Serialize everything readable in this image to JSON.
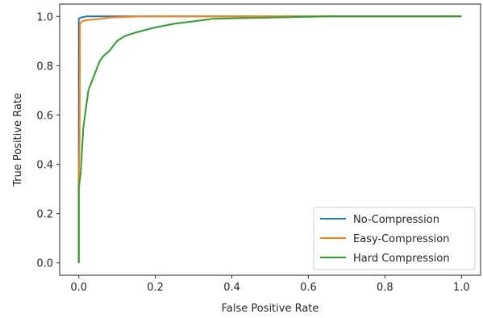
{
  "chart_data": {
    "type": "line",
    "title": "",
    "xlabel": "False Positive Rate",
    "ylabel": "True Positive Rate",
    "xlim": [
      -0.05,
      1.05
    ],
    "ylim": [
      -0.05,
      1.05
    ],
    "xticks": [
      0.0,
      0.2,
      0.4,
      0.6,
      0.8,
      1.0
    ],
    "yticks": [
      0.0,
      0.2,
      0.4,
      0.6,
      0.8,
      1.0
    ],
    "xtick_labels": [
      "0.0",
      "0.2",
      "0.4",
      "0.6",
      "0.8",
      "1.0"
    ],
    "ytick_labels": [
      "0.0",
      "0.2",
      "0.4",
      "0.6",
      "0.8",
      "1.0"
    ],
    "grid": false,
    "legend_position": "lower-right",
    "series": [
      {
        "name": "No-Compression",
        "color": "#1f77b4",
        "points": [
          [
            0,
            0
          ],
          [
            0,
            0.99
          ],
          [
            0.005,
            0.995
          ],
          [
            0.02,
            1.0
          ],
          [
            1.0,
            1.0
          ]
        ]
      },
      {
        "name": "Easy-Compression",
        "color": "#ff7f0e",
        "points": [
          [
            0,
            0
          ],
          [
            0,
            0.35
          ],
          [
            0.002,
            0.5
          ],
          [
            0.003,
            0.97
          ],
          [
            0.008,
            0.98
          ],
          [
            0.02,
            0.985
          ],
          [
            0.06,
            0.99
          ],
          [
            0.08,
            0.995
          ],
          [
            0.16,
            1.0
          ],
          [
            1.0,
            1.0
          ]
        ]
      },
      {
        "name": "Hard Compression",
        "color": "#2ca02c",
        "points": [
          [
            0,
            0
          ],
          [
            0,
            0.3
          ],
          [
            0.005,
            0.37
          ],
          [
            0.008,
            0.45
          ],
          [
            0.012,
            0.55
          ],
          [
            0.018,
            0.62
          ],
          [
            0.025,
            0.7
          ],
          [
            0.035,
            0.74
          ],
          [
            0.045,
            0.78
          ],
          [
            0.055,
            0.82
          ],
          [
            0.065,
            0.84
          ],
          [
            0.08,
            0.86
          ],
          [
            0.09,
            0.88
          ],
          [
            0.1,
            0.9
          ],
          [
            0.12,
            0.92
          ],
          [
            0.15,
            0.935
          ],
          [
            0.2,
            0.955
          ],
          [
            0.25,
            0.97
          ],
          [
            0.3,
            0.98
          ],
          [
            0.35,
            0.99
          ],
          [
            0.5,
            0.995
          ],
          [
            0.65,
            1.0
          ],
          [
            1.0,
            1.0
          ]
        ]
      }
    ]
  }
}
